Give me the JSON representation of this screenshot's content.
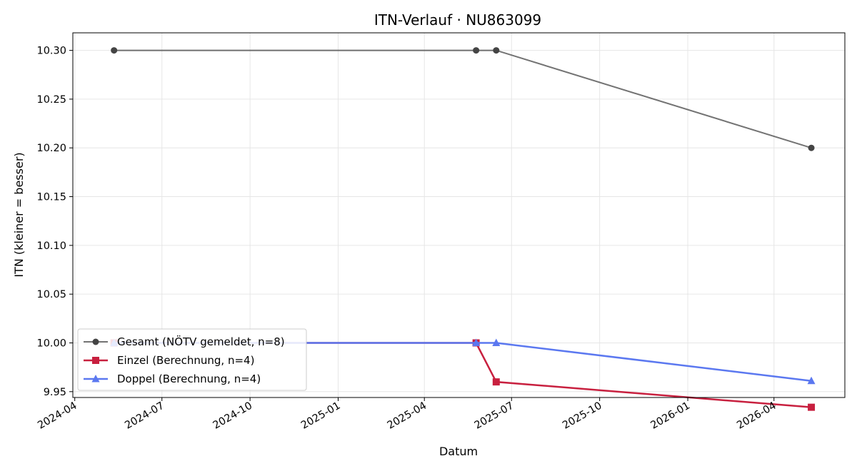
{
  "chart_data": {
    "type": "line",
    "title": "ITN-Verlauf · NU863099",
    "xlabel": "Datum",
    "ylabel": "ITN  (kleiner = besser)",
    "x_ticks": [
      "2024-04",
      "2024-07",
      "2024-10",
      "2025-01",
      "2025-04",
      "2025-07",
      "2025-10",
      "2026-01",
      "2026-04"
    ],
    "y_ticks": [
      "9.95",
      "10.00",
      "10.05",
      "10.10",
      "10.15",
      "10.20",
      "10.25",
      "10.30"
    ],
    "ylim": [
      9.944,
      10.318
    ],
    "xlim": [
      "2024-03-30",
      "2026-06-14"
    ],
    "grid": true,
    "legend_position": "lower-left",
    "series": [
      {
        "name": "Gesamt (NÖTV gemeldet, n=8)",
        "color": "#444444",
        "marker": "circle",
        "x": [
          "2024-05-12",
          "2025-05-25",
          "2025-06-15",
          "2026-05-10"
        ],
        "y": [
          10.3,
          10.3,
          10.3,
          10.2
        ]
      },
      {
        "name": "Einzel (Berechnung, n=4)",
        "color": "#c8203f",
        "marker": "square",
        "x": [
          "2024-05-12",
          "2025-05-25",
          "2025-06-15",
          "2026-05-10"
        ],
        "y": [
          10.0,
          10.0,
          9.96,
          9.934
        ]
      },
      {
        "name": "Doppel (Berechnung, n=4)",
        "color": "#5b78f0",
        "marker": "triangle",
        "x": [
          "2024-05-12",
          "2025-05-25",
          "2025-06-15",
          "2026-05-10"
        ],
        "y": [
          10.0,
          10.0,
          10.0,
          9.961
        ]
      }
    ]
  }
}
